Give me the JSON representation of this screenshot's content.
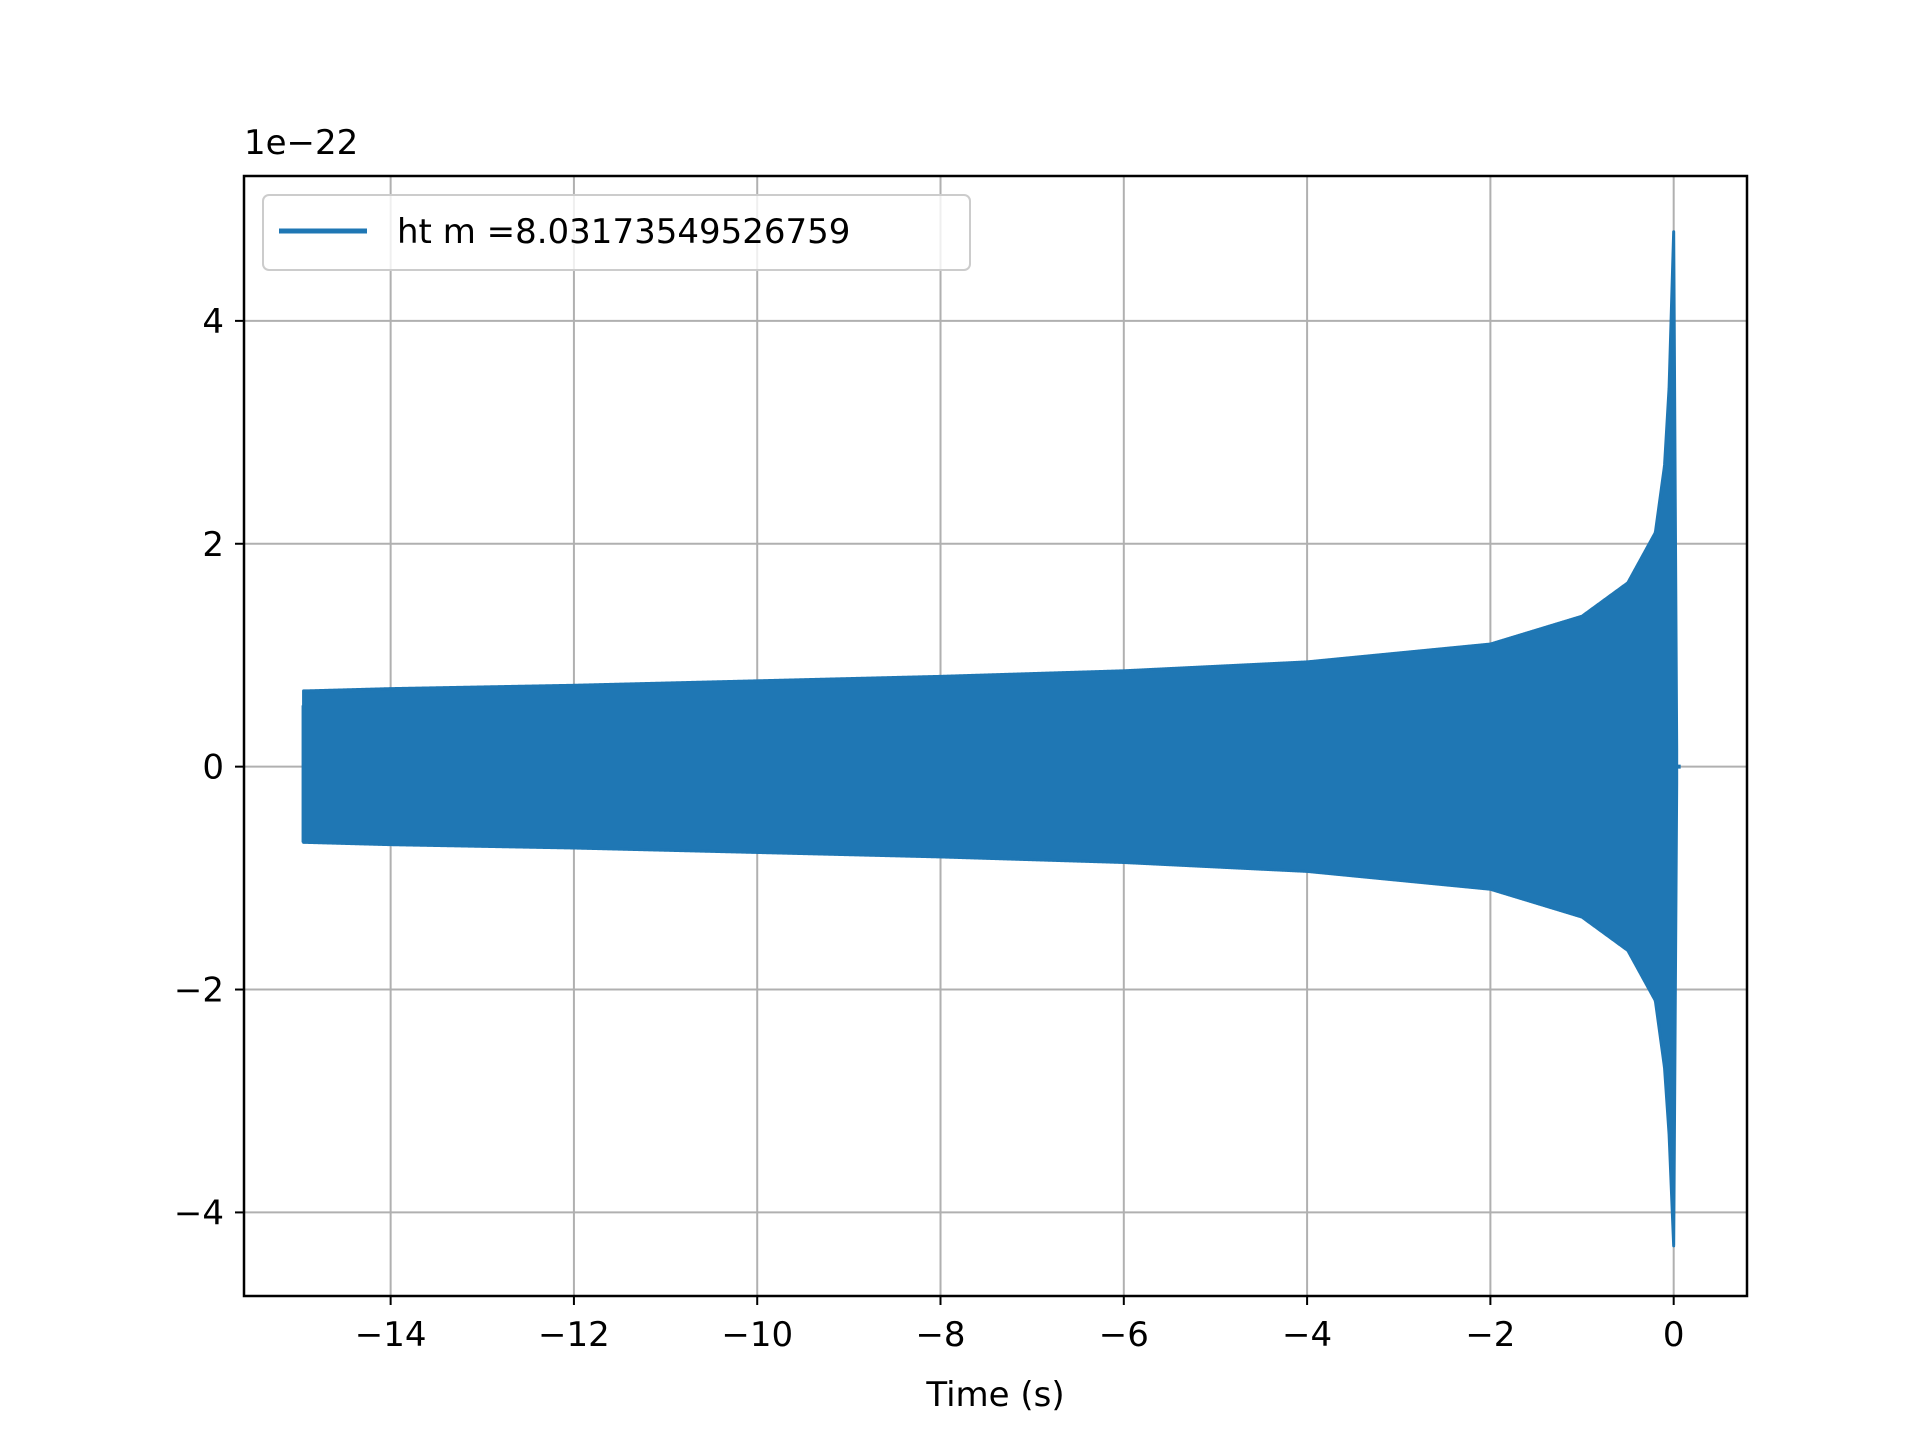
{
  "chart_data": {
    "type": "line",
    "xlabel": "Time (s)",
    "ylabel": "",
    "y_offset_label": "1e−22",
    "xlim": [
      -15.6,
      0.8
    ],
    "ylim": [
      -4.75,
      5.3
    ],
    "xticks": [
      -14,
      -12,
      -10,
      -8,
      -6,
      -4,
      -2,
      0
    ],
    "xtick_labels": [
      "−14",
      "−12",
      "−10",
      "−8",
      "−6",
      "−4",
      "−2",
      "0"
    ],
    "yticks": [
      -4,
      -2,
      0,
      2,
      4
    ],
    "ytick_labels": [
      "−4",
      "−2",
      "0",
      "2",
      "4"
    ],
    "grid": true,
    "legend_position": "top-left",
    "series": [
      {
        "name": "ht m =8.03173549526759",
        "color": "#1f77b4",
        "start_time": -14.95,
        "merger_time": 0.0,
        "envelope_upper": [
          [
            -14.9,
            0.68
          ],
          [
            -14,
            0.7
          ],
          [
            -12,
            0.73
          ],
          [
            -10,
            0.77
          ],
          [
            -8,
            0.81
          ],
          [
            -6,
            0.86
          ],
          [
            -4,
            0.94
          ],
          [
            -2,
            1.1
          ],
          [
            -1,
            1.35
          ],
          [
            -0.5,
            1.65
          ],
          [
            -0.2,
            2.1
          ],
          [
            -0.1,
            2.7
          ],
          [
            -0.05,
            3.4
          ],
          [
            0.0,
            4.8
          ]
        ],
        "envelope_lower": [
          [
            -14.9,
            -0.68
          ],
          [
            -14,
            -0.7
          ],
          [
            -12,
            -0.73
          ],
          [
            -10,
            -0.77
          ],
          [
            -8,
            -0.81
          ],
          [
            -6,
            -0.86
          ],
          [
            -4,
            -0.94
          ],
          [
            -2,
            -1.1
          ],
          [
            -1,
            -1.35
          ],
          [
            -0.5,
            -1.65
          ],
          [
            -0.2,
            -2.1
          ],
          [
            -0.1,
            -2.7
          ],
          [
            -0.05,
            -3.3
          ],
          [
            0.0,
            -4.3
          ]
        ]
      }
    ]
  }
}
